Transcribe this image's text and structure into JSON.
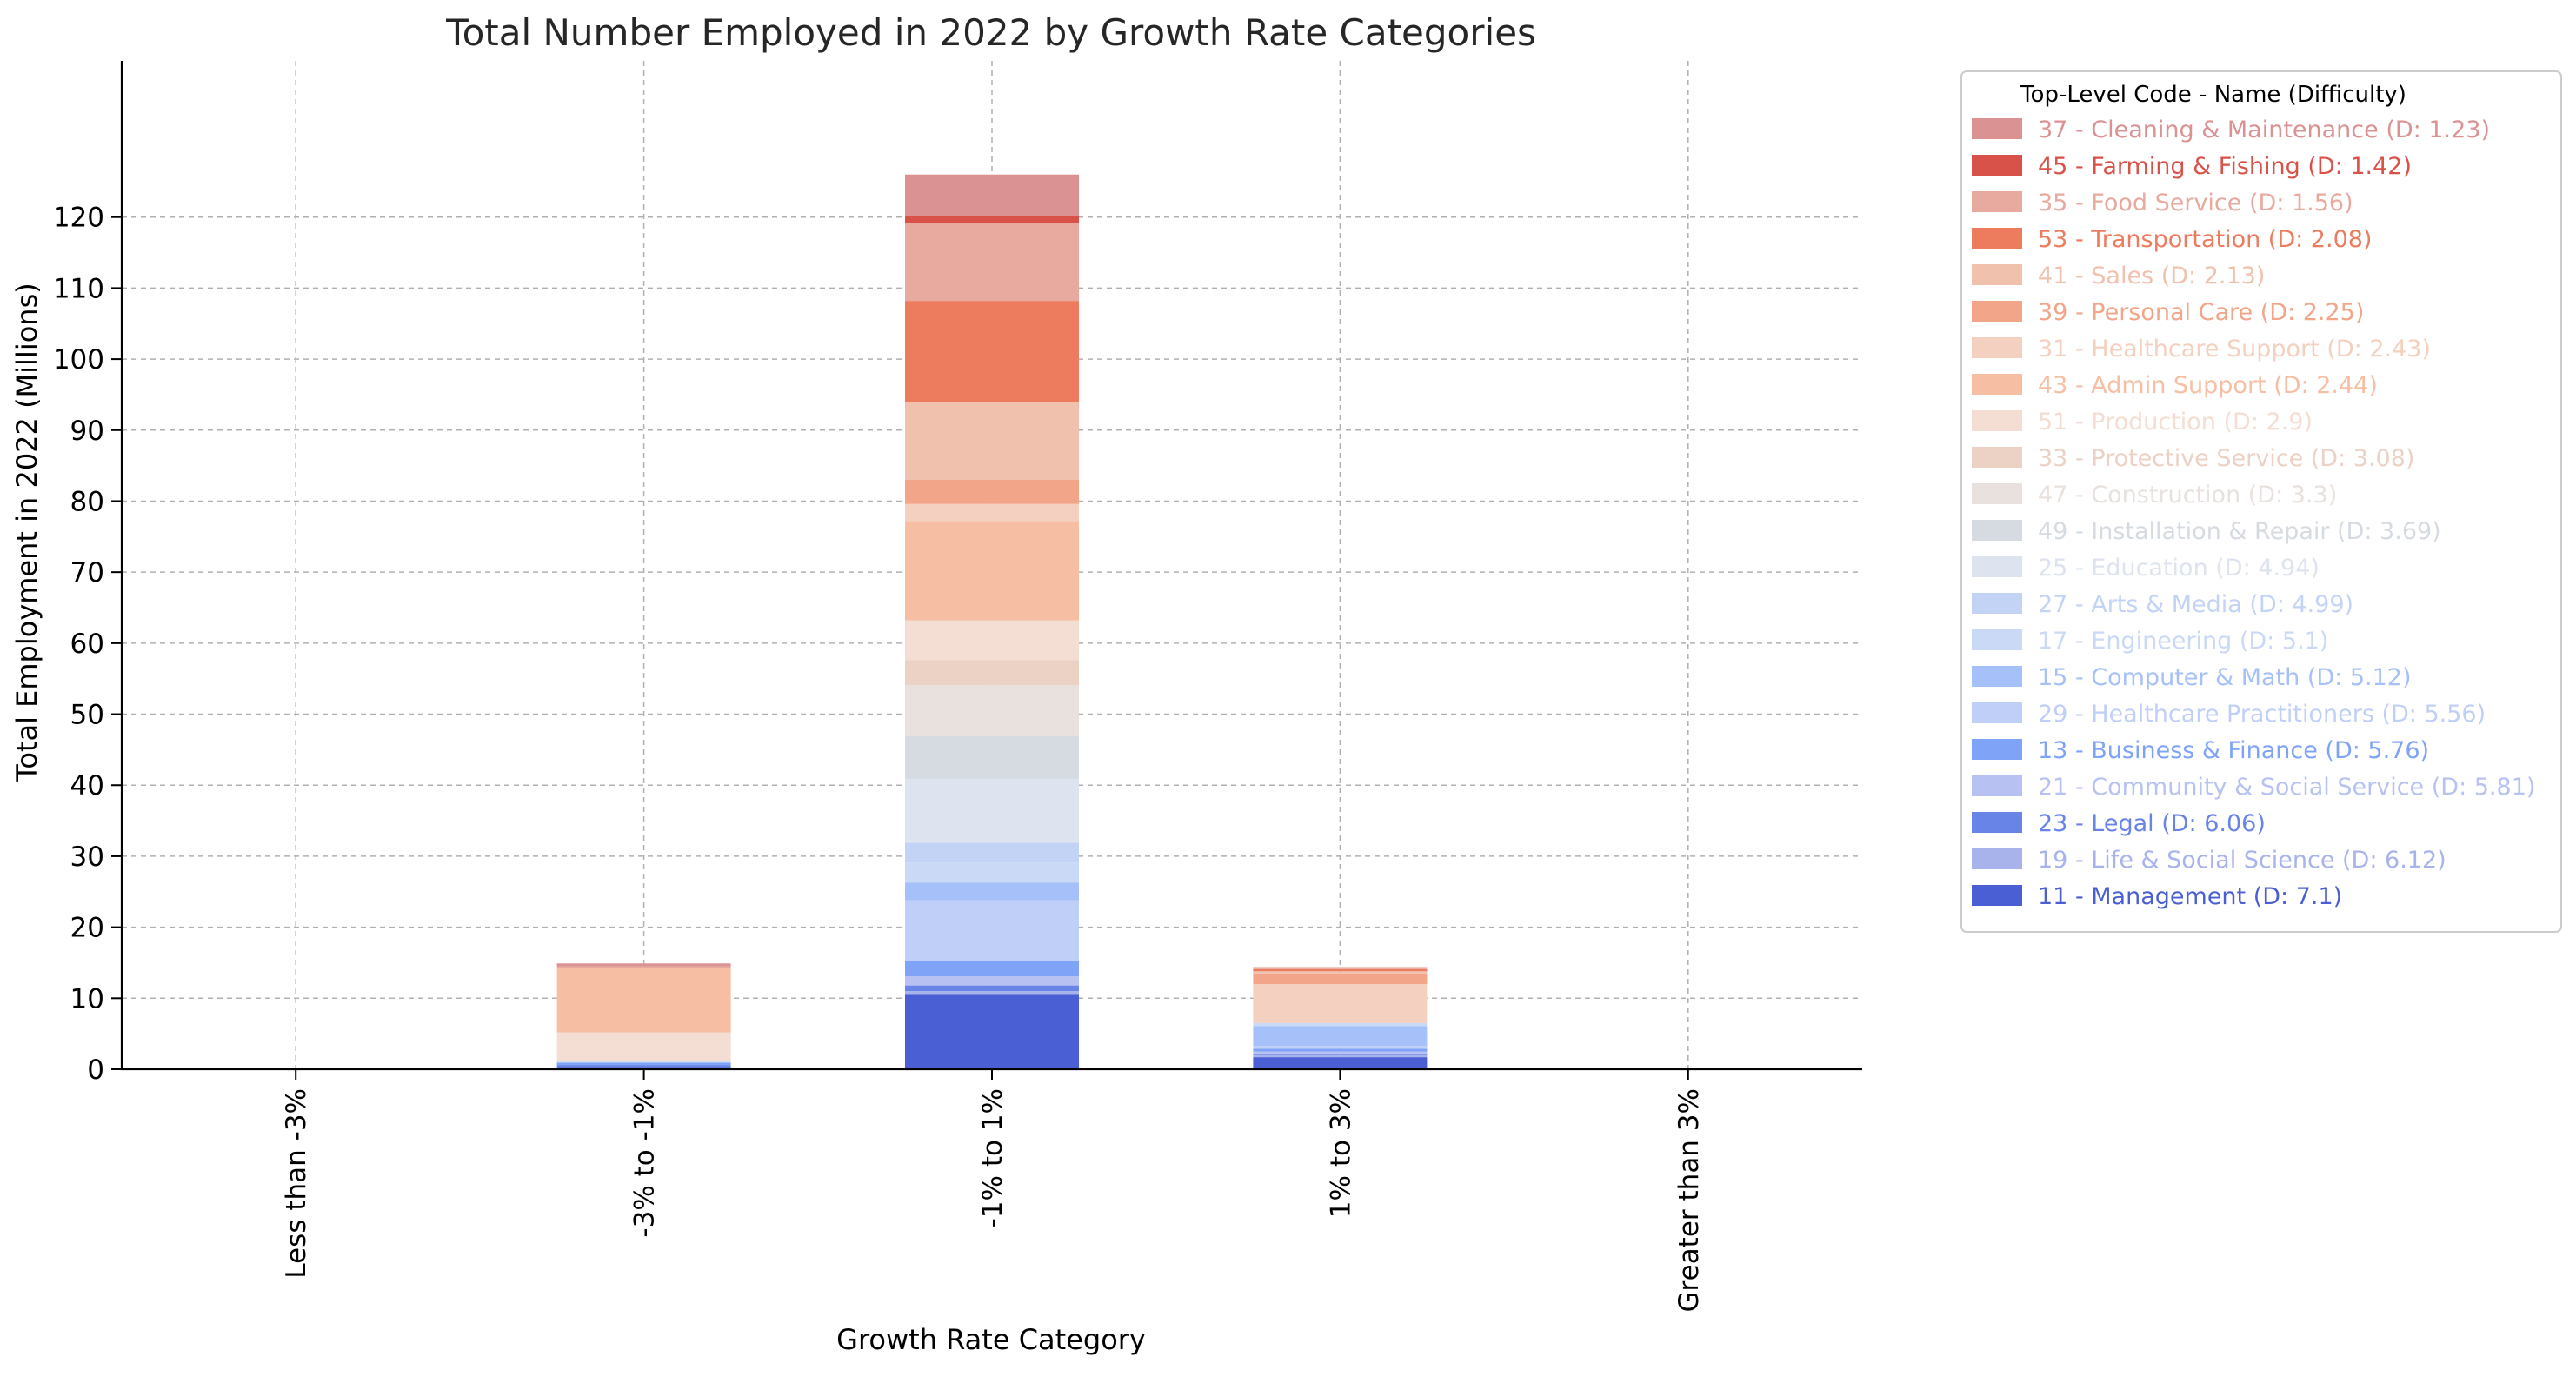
{
  "chart_data": {
    "type": "bar",
    "stacked": true,
    "title": "Total Number Employed in 2022 by Growth Rate Categories",
    "xlabel": "Growth Rate Category",
    "ylabel": "Total Employment in 2022 (Millions)",
    "categories": [
      "Less than -3%",
      "-3% to -1%",
      "-1% to 1%",
      "1% to 3%",
      "Greater than 3%"
    ],
    "ylim": [
      0,
      142
    ],
    "yticks": [
      0,
      10,
      20,
      30,
      40,
      50,
      60,
      70,
      80,
      90,
      100,
      110,
      120
    ],
    "grid": true,
    "legend_title": "Top-Level Code - Name (Difficulty)",
    "legend_position": "upper right, outside plot",
    "series": [
      {
        "name": "11 - Management (D: 7.1)",
        "color": "#4a5fd3",
        "values": [
          0,
          0.3,
          10.5,
          1.7,
          0
        ]
      },
      {
        "name": "19 - Life & Social Science (D: 6.12)",
        "color": "#a8b3ec",
        "values": [
          0,
          0,
          0.5,
          0.3,
          0
        ]
      },
      {
        "name": "23 - Legal (D: 6.06)",
        "color": "#6884e6",
        "values": [
          0,
          0.3,
          0.8,
          0.2,
          0
        ]
      },
      {
        "name": "21 - Community & Social Service (D: 5.81)",
        "color": "#b7c2f2",
        "values": [
          0,
          0,
          1.3,
          0.3,
          0
        ]
      },
      {
        "name": "13 - Business & Finance (D: 5.76)",
        "color": "#7ea3f7",
        "values": [
          0,
          0.3,
          2.2,
          0.4,
          0
        ]
      },
      {
        "name": "29 - Healthcare Practitioners (D: 5.56)",
        "color": "#c0cff7",
        "values": [
          0,
          0,
          8.5,
          0.4,
          0
        ]
      },
      {
        "name": "15 - Computer & Math (D: 5.12)",
        "color": "#a6c1f9",
        "values": [
          0,
          0.1,
          2.5,
          2.8,
          0
        ]
      },
      {
        "name": "17 - Engineering (D: 5.1)",
        "color": "#cad9f5",
        "values": [
          0,
          0.1,
          2.8,
          0.3,
          0
        ]
      },
      {
        "name": "27 - Arts & Media (D: 4.99)",
        "color": "#c2d3f5",
        "values": [
          0,
          0.1,
          2.8,
          0.1,
          0
        ]
      },
      {
        "name": "25 - Education (D: 4.94)",
        "color": "#dde3ef",
        "values": [
          0,
          0,
          9.0,
          0,
          0
        ]
      },
      {
        "name": "49 - Installation & Repair (D: 3.69)",
        "color": "#d6dbe2",
        "values": [
          0,
          0,
          6.0,
          0,
          0
        ]
      },
      {
        "name": "47 - Construction (D: 3.3)",
        "color": "#e8e1dd",
        "values": [
          0,
          0,
          7.2,
          0,
          0
        ]
      },
      {
        "name": "33 - Protective Service (D: 3.08)",
        "color": "#ecd1c5",
        "values": [
          0,
          0,
          3.5,
          0,
          0
        ]
      },
      {
        "name": "51 - Production (D: 2.9)",
        "color": "#f4ddd2",
        "values": [
          0,
          4.0,
          5.6,
          0,
          0
        ]
      },
      {
        "name": "43 - Admin Support (D: 2.44)",
        "color": "#f6bfa3",
        "values": [
          0,
          9.0,
          14.0,
          0,
          0
        ]
      },
      {
        "name": "31 - Healthcare Support (D: 2.43)",
        "color": "#f4d0c0",
        "values": [
          0,
          0,
          2.4,
          5.5,
          0
        ]
      },
      {
        "name": "39 - Personal Care (D: 2.25)",
        "color": "#f2a588",
        "values": [
          0,
          0,
          3.4,
          1.5,
          0
        ]
      },
      {
        "name": "41 - Sales (D: 2.13)",
        "color": "#f0c1ad",
        "values": [
          0,
          0,
          11.0,
          0.3,
          0
        ]
      },
      {
        "name": "53 - Transportation (D: 2.08)",
        "color": "#ed7b5e",
        "values": [
          0,
          0,
          14.2,
          0.3,
          0
        ]
      },
      {
        "name": "35 - Food Service (D: 1.56)",
        "color": "#e8aa9e",
        "values": [
          0,
          0.3,
          11.0,
          0.3,
          0
        ]
      },
      {
        "name": "45 - Farming & Fishing (D: 1.42)",
        "color": "#d9524a",
        "values": [
          0,
          0,
          1.0,
          0,
          0
        ]
      },
      {
        "name": "37 - Cleaning & Maintenance (D: 1.23)",
        "color": "#db9293",
        "values": [
          0,
          0.4,
          5.8,
          0,
          0
        ]
      }
    ]
  }
}
